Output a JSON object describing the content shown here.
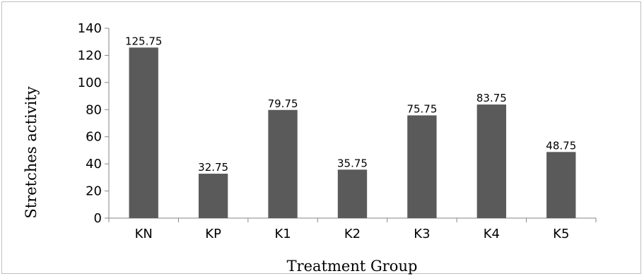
{
  "chart_data": {
    "type": "bar",
    "title": "",
    "xlabel": "Treatment Group",
    "ylabel": "Stretches activity",
    "categories": [
      "KN",
      "KP",
      "K1",
      "K2",
      "K3",
      "K4",
      "K5"
    ],
    "values": [
      125.75,
      32.75,
      79.75,
      35.75,
      75.75,
      83.75,
      48.75
    ],
    "data_labels": [
      "125.75",
      "32.75",
      "79.75",
      "35.75",
      "75.75",
      "83.75",
      "48.75"
    ],
    "ylim": [
      0,
      140
    ],
    "yticks": [
      "0",
      "20",
      "40",
      "60",
      "80",
      "100",
      "120",
      "140"
    ],
    "bar_color": "#5a5a5a",
    "grid": false,
    "legend": "none"
  }
}
